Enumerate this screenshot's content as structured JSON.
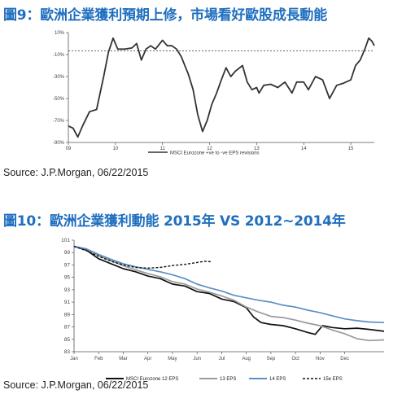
{
  "figure1": {
    "title": "圖9：歐洲企業獲利預期上修，市場看好歐股成長動能",
    "source": "Source: J.P.Morgan, 06/22/2015"
  },
  "figure2": {
    "title": "圖10：歐洲企業獲利動能  2015年 VS 2012~2014年",
    "source": "Source: J.P.Morgan, 06/22/2015"
  },
  "chart_data": [
    {
      "type": "line",
      "x_ticks": [
        "09",
        "10",
        "11",
        "12",
        "13",
        "14",
        "15"
      ],
      "y_ticks": [
        "10%",
        "-10%",
        "-30%",
        "-50%",
        "-70%",
        "-90%"
      ],
      "ylim": [
        -90,
        10
      ],
      "xlim": [
        9.0,
        15.5
      ],
      "reference_line": -10,
      "grid": false,
      "legend_position": "bottom-center",
      "series": [
        {
          "name": "MSCI Eurozone +ve to -ve EPS revisions",
          "color": "#333333",
          "points": [
            [
              9.0,
              -75
            ],
            [
              9.1,
              -77
            ],
            [
              9.2,
              -85
            ],
            [
              9.3,
              -75
            ],
            [
              9.45,
              -62
            ],
            [
              9.6,
              -60
            ],
            [
              9.75,
              -30
            ],
            [
              9.85,
              -8
            ],
            [
              9.95,
              5
            ],
            [
              10.05,
              -5
            ],
            [
              10.2,
              -5
            ],
            [
              10.35,
              -4
            ],
            [
              10.45,
              0
            ],
            [
              10.55,
              -15
            ],
            [
              10.65,
              -5
            ],
            [
              10.75,
              -2
            ],
            [
              10.85,
              -5
            ],
            [
              11.0,
              3
            ],
            [
              11.1,
              -2
            ],
            [
              11.2,
              -2
            ],
            [
              11.3,
              -5
            ],
            [
              11.4,
              -12
            ],
            [
              11.55,
              -28
            ],
            [
              11.65,
              -42
            ],
            [
              11.75,
              -65
            ],
            [
              11.85,
              -80
            ],
            [
              11.95,
              -70
            ],
            [
              12.05,
              -55
            ],
            [
              12.15,
              -45
            ],
            [
              12.25,
              -33
            ],
            [
              12.35,
              -22
            ],
            [
              12.45,
              -30
            ],
            [
              12.55,
              -25
            ],
            [
              12.7,
              -20
            ],
            [
              12.8,
              -35
            ],
            [
              12.9,
              -42
            ],
            [
              13.0,
              -40
            ],
            [
              13.05,
              -45
            ],
            [
              13.15,
              -38
            ],
            [
              13.3,
              -37
            ],
            [
              13.45,
              -40
            ],
            [
              13.6,
              -35
            ],
            [
              13.75,
              -45
            ],
            [
              13.85,
              -35
            ],
            [
              14.0,
              -35
            ],
            [
              14.1,
              -42
            ],
            [
              14.25,
              -30
            ],
            [
              14.4,
              -33
            ],
            [
              14.55,
              -50
            ],
            [
              14.7,
              -38
            ],
            [
              14.85,
              -36
            ],
            [
              15.0,
              -33
            ],
            [
              15.1,
              -20
            ],
            [
              15.2,
              -15
            ],
            [
              15.3,
              -5
            ],
            [
              15.38,
              5
            ],
            [
              15.45,
              2
            ],
            [
              15.5,
              -2
            ]
          ]
        }
      ]
    },
    {
      "type": "line",
      "x_ticks": [
        "Jan",
        "Feb",
        "Mar",
        "Apr",
        "May",
        "Jun",
        "Jul",
        "Aug",
        "Sep",
        "Oct",
        "Nov",
        "Dec"
      ],
      "y_ticks": [
        "101",
        "99",
        "97",
        "95",
        "93",
        "91",
        "89",
        "87",
        "85",
        "83"
      ],
      "ylim": [
        83,
        101
      ],
      "xlim": [
        0,
        12.6
      ],
      "grid": false,
      "legend_position": "bottom",
      "series": [
        {
          "name": "MSCI Eurozone 12 EPS",
          "color": "#111111",
          "dash": "solid",
          "points": [
            [
              0,
              100
            ],
            [
              0.5,
              99.4
            ],
            [
              1,
              98
            ],
            [
              1.5,
              97.2
            ],
            [
              2,
              96.4
            ],
            [
              2.5,
              95.9
            ],
            [
              3,
              95.2
            ],
            [
              3.5,
              94.8
            ],
            [
              4,
              93.9
            ],
            [
              4.5,
              93.6
            ],
            [
              5,
              92.7
            ],
            [
              5.5,
              92.4
            ],
            [
              6,
              91.5
            ],
            [
              6.5,
              91.1
            ],
            [
              7,
              90.1
            ],
            [
              7.3,
              88.6
            ],
            [
              7.6,
              87.7
            ],
            [
              8,
              87.4
            ],
            [
              8.5,
              87.2
            ],
            [
              9,
              86.7
            ],
            [
              9.5,
              86.1
            ],
            [
              9.8,
              85.8
            ],
            [
              10.1,
              87.2
            ],
            [
              10.5,
              86.9
            ],
            [
              11,
              86.7
            ],
            [
              11.5,
              86.8
            ],
            [
              12,
              86.6
            ],
            [
              12.6,
              86.3
            ]
          ]
        },
        {
          "name": "13 EPS",
          "color": "#9a9a9a",
          "dash": "solid",
          "points": [
            [
              0,
              100
            ],
            [
              0.5,
              99.6
            ],
            [
              1,
              98.5
            ],
            [
              1.5,
              97.7
            ],
            [
              2,
              96.9
            ],
            [
              2.5,
              96.2
            ],
            [
              3,
              95.6
            ],
            [
              3.5,
              95.1
            ],
            [
              4,
              94.3
            ],
            [
              4.5,
              93.9
            ],
            [
              5,
              93.1
            ],
            [
              5.5,
              92.6
            ],
            [
              6,
              92
            ],
            [
              6.5,
              91.3
            ],
            [
              7,
              90.2
            ],
            [
              7.5,
              89.4
            ],
            [
              8,
              88.7
            ],
            [
              8.5,
              88.5
            ],
            [
              9,
              88.1
            ],
            [
              9.5,
              87.6
            ],
            [
              10,
              87.2
            ],
            [
              10.5,
              86.5
            ],
            [
              11,
              85.9
            ],
            [
              11.5,
              85.1
            ],
            [
              12,
              84.8
            ],
            [
              12.6,
              84.9
            ]
          ]
        },
        {
          "name": "14 EPS",
          "color": "#5b8fc7",
          "dash": "solid",
          "points": [
            [
              0,
              100
            ],
            [
              0.5,
              99.6
            ],
            [
              1,
              98.7
            ],
            [
              1.5,
              97.9
            ],
            [
              2,
              97.2
            ],
            [
              2.5,
              96.7
            ],
            [
              3,
              96.3
            ],
            [
              3.5,
              95.9
            ],
            [
              4,
              95.4
            ],
            [
              4.5,
              94.8
            ],
            [
              5,
              93.9
            ],
            [
              5.5,
              93.3
            ],
            [
              6,
              92.8
            ],
            [
              6.5,
              92.1
            ],
            [
              7,
              91.7
            ],
            [
              7.5,
              91.3
            ],
            [
              8,
              91
            ],
            [
              8.5,
              90.5
            ],
            [
              9,
              90.2
            ],
            [
              9.5,
              89.7
            ],
            [
              10,
              89.3
            ],
            [
              10.5,
              88.8
            ],
            [
              11,
              88.3
            ],
            [
              11.5,
              88
            ],
            [
              12,
              87.8
            ],
            [
              12.6,
              87.7
            ]
          ]
        },
        {
          "name": "15e EPS",
          "color": "#111111",
          "dash": "dashed",
          "points": [
            [
              0,
              100
            ],
            [
              0.5,
              99.3
            ],
            [
              1,
              98.4
            ],
            [
              1.5,
              97.6
            ],
            [
              2,
              97
            ],
            [
              2.5,
              96.6
            ],
            [
              3,
              96.5
            ],
            [
              3.5,
              96.6
            ],
            [
              4,
              96.9
            ],
            [
              4.5,
              97.1
            ],
            [
              5,
              97.4
            ],
            [
              5.3,
              97.6
            ],
            [
              5.6,
              97.5
            ]
          ]
        }
      ]
    }
  ]
}
